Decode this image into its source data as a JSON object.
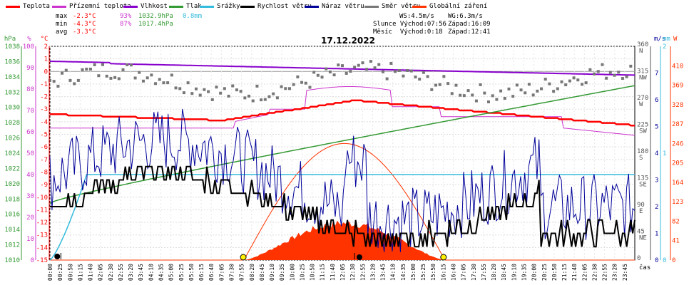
{
  "chart_data": {
    "type": "line",
    "title": "17.12.2022",
    "legend": [
      {
        "name": "Teplota",
        "color": "#ff0000"
      },
      {
        "name": "Přízemní teplota",
        "color": "#cc33cc"
      },
      {
        "name": "Vlhkost",
        "color": "#8800cc"
      },
      {
        "name": "Tlak",
        "color": "#339933"
      },
      {
        "name": "Srážky",
        "color": "#33bbdd"
      },
      {
        "name": "Rychlost větru",
        "color": "#000000"
      },
      {
        "name": "Náraz větru",
        "color": "#000099"
      },
      {
        "name": "Směr větru",
        "color": "#777777"
      },
      {
        "name": "Globální záření",
        "color": "#ff3300"
      }
    ],
    "stats": {
      "max_label": "max",
      "max_temp": "-2.3°C",
      "max_hum": "93%",
      "max_press": "1032.9hPa",
      "max_rain": "0.8mm",
      "min_label": "min",
      "min_temp": "-4.3°C",
      "min_hum": "87%",
      "min_press": "1017.4hPa",
      "avg_label": "avg",
      "avg_temp": "-3.3°C"
    },
    "info": {
      "ws": "WS:4.5m/s",
      "wg": "WG:6.3m/s",
      "slunce": "Slunce Východ:07:56",
      "slunce_zapad": "Západ:16:09",
      "mesic": "Měsíc  Východ:0:18",
      "mesic_zapad": "Západ:12:41"
    },
    "axes": {
      "pressure": {
        "unit": "hPa",
        "ticks": [
          1038,
          1036,
          1034,
          1032,
          1030,
          1028,
          1026,
          1024,
          1022,
          1020,
          1018,
          1016,
          1014,
          1012,
          1010
        ],
        "color": "#339933"
      },
      "humidity": {
        "unit": "%",
        "ticks": [
          100,
          90,
          80,
          70,
          60,
          50,
          40,
          30,
          20,
          10,
          0
        ],
        "color": "#cc33cc"
      },
      "temperature": {
        "unit": "°C",
        "ticks": [
          2,
          1,
          0,
          -1,
          -2,
          -3,
          -4,
          -5,
          -6,
          -7,
          -8,
          -9,
          -10,
          -11,
          -12,
          -13,
          -14,
          -15
        ],
        "color": "#ff0000"
      },
      "direction": {
        "ticks": [
          {
            "v": "360",
            "l": "N"
          },
          {
            "v": "315",
            "l": "NW"
          },
          {
            "v": "270",
            "l": "W"
          },
          {
            "v": "225",
            "l": "SW"
          },
          {
            "v": "180",
            "l": "S"
          },
          {
            "v": "135",
            "l": "SE"
          },
          {
            "v": "90",
            "l": "E"
          },
          {
            "v": "45",
            "l": "NE"
          },
          {
            "v": "0",
            "l": ""
          }
        ]
      },
      "wind": {
        "unit": "m/s",
        "ticks": [
          7,
          6,
          5,
          4,
          3,
          2,
          1,
          0
        ]
      },
      "rain": {
        "unit": "mm",
        "ticks": [
          2,
          1,
          0
        ],
        "color": "#33bbdd"
      },
      "radiation": {
        "unit": "W",
        "ticks": [
          410,
          369,
          328,
          287,
          246,
          205,
          164,
          123,
          82,
          41,
          0
        ],
        "color": "#ff3300"
      },
      "x": {
        "label": "čas",
        "ticks": [
          "00:00",
          "00:25",
          "00:50",
          "01:15",
          "01:40",
          "02:05",
          "02:30",
          "02:55",
          "03:20",
          "03:45",
          "04:10",
          "04:35",
          "05:00",
          "05:25",
          "05:50",
          "06:15",
          "06:40",
          "07:05",
          "07:30",
          "07:55",
          "08:20",
          "08:45",
          "09:10",
          "09:35",
          "10:00",
          "10:25",
          "10:50",
          "11:15",
          "11:40",
          "12:05",
          "12:30",
          "12:55",
          "13:20",
          "13:45",
          "14:10",
          "14:35",
          "15:00",
          "15:25",
          "15:50",
          "16:15",
          "16:40",
          "17:05",
          "17:30",
          "17:55",
          "18:20",
          "18:45",
          "19:10",
          "19:35",
          "20:00",
          "20:25",
          "20:50",
          "21:15",
          "21:40",
          "22:05",
          "22:30",
          "22:55",
          "23:20",
          "23:45"
        ]
      }
    },
    "series_summary": {
      "humidity": {
        "start": 93,
        "end": 87
      },
      "pressure": {
        "start": 1017.4,
        "end": 1032.9
      },
      "rain_total_mm": 0.8,
      "temperature": {
        "start": -3.5,
        "peak": -2.3,
        "end": -4.3
      },
      "wind_speed_typical": [
        1.5,
        4.5
      ],
      "wind_gust_max": 6.3,
      "radiation_peak": 82,
      "sunrise": "07:56",
      "sunset": "16:09"
    }
  }
}
